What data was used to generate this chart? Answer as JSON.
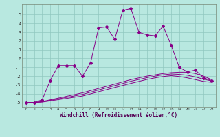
{
  "xlabel": "Windchill (Refroidissement éolien,°C)",
  "background_color": "#b8e8e0",
  "grid_color": "#90c8c0",
  "line_color": "#880088",
  "x_values": [
    0,
    1,
    2,
    3,
    4,
    5,
    6,
    7,
    8,
    9,
    10,
    11,
    12,
    13,
    14,
    15,
    16,
    17,
    18,
    19,
    20,
    21,
    22,
    23
  ],
  "y_main": [
    -5,
    -5,
    -4.7,
    -2.5,
    -0.8,
    -0.8,
    -0.8,
    -2.0,
    -0.5,
    3.5,
    3.6,
    2.2,
    5.5,
    5.7,
    3.0,
    2.7,
    2.6,
    3.7,
    1.5,
    -1.0,
    -1.5,
    -1.3,
    -2.2,
    -2.5
  ],
  "y_line1": [
    -5,
    -5,
    -4.9,
    -4.7,
    -4.5,
    -4.3,
    -4.1,
    -3.9,
    -3.65,
    -3.4,
    -3.15,
    -2.9,
    -2.65,
    -2.4,
    -2.2,
    -2.0,
    -1.85,
    -1.7,
    -1.6,
    -1.55,
    -1.55,
    -1.7,
    -2.0,
    -2.4
  ],
  "y_line2": [
    -5,
    -5,
    -4.93,
    -4.76,
    -4.59,
    -4.42,
    -4.25,
    -4.08,
    -3.83,
    -3.58,
    -3.33,
    -3.08,
    -2.83,
    -2.58,
    -2.38,
    -2.18,
    -2.0,
    -1.85,
    -1.75,
    -1.8,
    -1.9,
    -2.1,
    -2.35,
    -2.55
  ],
  "y_line3": [
    -5,
    -5,
    -4.96,
    -4.82,
    -4.68,
    -4.54,
    -4.4,
    -4.26,
    -4.02,
    -3.78,
    -3.54,
    -3.3,
    -3.06,
    -2.82,
    -2.6,
    -2.38,
    -2.2,
    -2.05,
    -1.95,
    -2.05,
    -2.2,
    -2.4,
    -2.6,
    -2.7
  ],
  "ylim": [
    -5.5,
    6.2
  ],
  "xlim": [
    -0.5,
    23.5
  ],
  "yticks": [
    -5,
    -4,
    -3,
    -2,
    -1,
    0,
    1,
    2,
    3,
    4,
    5
  ],
  "xticks": [
    0,
    1,
    2,
    3,
    4,
    5,
    6,
    7,
    8,
    9,
    10,
    11,
    12,
    13,
    14,
    15,
    16,
    17,
    18,
    19,
    20,
    21,
    22,
    23
  ]
}
